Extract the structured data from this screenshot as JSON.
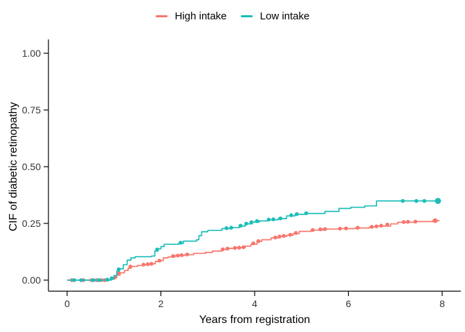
{
  "figure": {
    "background": "#ffffff"
  },
  "legend": {
    "position": "top-center",
    "items": [
      {
        "label": "High intake",
        "color": "#F8766D"
      },
      {
        "label": "Low intake",
        "color": "#1DBDB8"
      }
    ]
  },
  "axes": {
    "x": {
      "title": "Years from registration",
      "tick_labels": [
        "0",
        "2",
        "4",
        "6",
        "8"
      ],
      "tick_values": [
        0,
        2,
        4,
        6,
        8
      ],
      "line_color": "#000000",
      "tick_label_color": "#333333",
      "title_color": "#000000"
    },
    "y": {
      "title": "CIF of diabetic retinopathy",
      "tick_labels": [
        "0.00",
        "0.25",
        "0.50",
        "0.75",
        "1.00"
      ],
      "tick_values": [
        0,
        0.25,
        0.5,
        0.75,
        1.0
      ],
      "line_color": "#000000",
      "tick_label_color": "#333333",
      "title_color": "#000000"
    }
  },
  "chart_data": {
    "type": "line",
    "subtype": "step-cumulative-incidence",
    "title": "",
    "xlabel": "Years from registration",
    "ylabel": "CIF of diabetic retinopathy",
    "xlim": [
      -0.42,
      8.45
    ],
    "ylim": [
      -0.05,
      1.06
    ],
    "xticks": [
      0,
      2,
      4,
      6,
      8
    ],
    "yticks": [
      0,
      0.25,
      0.5,
      0.75,
      1.0
    ],
    "grid": false,
    "legend_position": "top",
    "series": [
      {
        "name": "High intake",
        "color": "#F8766D",
        "steps": [
          [
            0,
            0
          ],
          [
            0.85,
            0
          ],
          [
            0.92,
            0.004
          ],
          [
            1.0,
            0.012
          ],
          [
            1.06,
            0.022
          ],
          [
            1.13,
            0.032
          ],
          [
            1.22,
            0.042
          ],
          [
            1.3,
            0.052
          ],
          [
            1.36,
            0.06
          ],
          [
            1.5,
            0.065
          ],
          [
            1.62,
            0.068
          ],
          [
            1.8,
            0.072
          ],
          [
            1.88,
            0.082
          ],
          [
            1.97,
            0.086
          ],
          [
            2.05,
            0.098
          ],
          [
            2.15,
            0.102
          ],
          [
            2.3,
            0.108
          ],
          [
            2.5,
            0.112
          ],
          [
            2.7,
            0.118
          ],
          [
            2.95,
            0.122
          ],
          [
            3.1,
            0.128
          ],
          [
            3.3,
            0.135
          ],
          [
            3.45,
            0.14
          ],
          [
            3.6,
            0.143
          ],
          [
            3.8,
            0.15
          ],
          [
            3.92,
            0.158
          ],
          [
            4.05,
            0.17
          ],
          [
            4.15,
            0.178
          ],
          [
            4.35,
            0.186
          ],
          [
            4.5,
            0.192
          ],
          [
            4.68,
            0.198
          ],
          [
            4.82,
            0.205
          ],
          [
            4.95,
            0.215
          ],
          [
            5.2,
            0.22
          ],
          [
            5.45,
            0.225
          ],
          [
            5.8,
            0.227
          ],
          [
            6.15,
            0.23
          ],
          [
            6.45,
            0.234
          ],
          [
            6.62,
            0.238
          ],
          [
            6.9,
            0.248
          ],
          [
            7.05,
            0.255
          ],
          [
            7.4,
            0.258
          ],
          [
            7.8,
            0.262
          ],
          [
            7.94,
            0.262
          ]
        ],
        "markers": [
          [
            0.1,
            0
          ],
          [
            0.35,
            0
          ],
          [
            0.52,
            0
          ],
          [
            0.63,
            0
          ],
          [
            0.73,
            0
          ],
          [
            0.8,
            0
          ],
          [
            1.02,
            0.012
          ],
          [
            1.1,
            0.03
          ],
          [
            1.35,
            0.06
          ],
          [
            1.63,
            0.068
          ],
          [
            1.72,
            0.07
          ],
          [
            1.8,
            0.072
          ],
          [
            1.97,
            0.086
          ],
          [
            2.26,
            0.106
          ],
          [
            2.36,
            0.108
          ],
          [
            2.44,
            0.11
          ],
          [
            2.56,
            0.113
          ],
          [
            3.32,
            0.136
          ],
          [
            3.42,
            0.139
          ],
          [
            3.58,
            0.142
          ],
          [
            3.67,
            0.143
          ],
          [
            3.76,
            0.145
          ],
          [
            3.97,
            0.162
          ],
          [
            4.08,
            0.172
          ],
          [
            4.44,
            0.188
          ],
          [
            4.53,
            0.192
          ],
          [
            4.62,
            0.195
          ],
          [
            4.76,
            0.2
          ],
          [
            4.88,
            0.208
          ],
          [
            5.24,
            0.221
          ],
          [
            5.4,
            0.224
          ],
          [
            5.5,
            0.225
          ],
          [
            5.82,
            0.227
          ],
          [
            5.95,
            0.228
          ],
          [
            6.2,
            0.231
          ],
          [
            6.5,
            0.235
          ],
          [
            6.6,
            0.237
          ],
          [
            6.7,
            0.24
          ],
          [
            6.83,
            0.245
          ],
          [
            7.18,
            0.256
          ],
          [
            7.27,
            0.257
          ],
          [
            7.43,
            0.258
          ]
        ],
        "final_marker": [
          7.85,
          0.262
        ],
        "final_value": 0.26
      },
      {
        "name": "Low intake",
        "color": "#1DBDB8",
        "steps": [
          [
            0,
            0
          ],
          [
            0.88,
            0
          ],
          [
            0.94,
            0.006
          ],
          [
            1.0,
            0.02
          ],
          [
            1.06,
            0.04
          ],
          [
            1.12,
            0.05
          ],
          [
            1.2,
            0.068
          ],
          [
            1.28,
            0.088
          ],
          [
            1.36,
            0.098
          ],
          [
            1.45,
            0.103
          ],
          [
            1.8,
            0.106
          ],
          [
            1.87,
            0.128
          ],
          [
            1.94,
            0.138
          ],
          [
            2.0,
            0.148
          ],
          [
            2.07,
            0.158
          ],
          [
            2.38,
            0.162
          ],
          [
            2.48,
            0.172
          ],
          [
            2.76,
            0.178
          ],
          [
            2.81,
            0.196
          ],
          [
            2.87,
            0.213
          ],
          [
            3.0,
            0.219
          ],
          [
            3.3,
            0.227
          ],
          [
            3.5,
            0.231
          ],
          [
            3.67,
            0.238
          ],
          [
            3.8,
            0.248
          ],
          [
            3.95,
            0.256
          ],
          [
            4.1,
            0.261
          ],
          [
            4.28,
            0.266
          ],
          [
            4.5,
            0.271
          ],
          [
            4.68,
            0.283
          ],
          [
            4.86,
            0.29
          ],
          [
            5.08,
            0.294
          ],
          [
            5.5,
            0.303
          ],
          [
            5.8,
            0.316
          ],
          [
            6.05,
            0.321
          ],
          [
            6.35,
            0.327
          ],
          [
            6.6,
            0.349
          ],
          [
            7.97,
            0.349
          ]
        ],
        "markers": [
          [
            0.15,
            0
          ],
          [
            0.3,
            0
          ],
          [
            0.56,
            0
          ],
          [
            0.68,
            0
          ],
          [
            0.86,
            0.002
          ],
          [
            0.95,
            0.008
          ],
          [
            1.1,
            0.048
          ],
          [
            1.92,
            0.135
          ],
          [
            2.42,
            0.165
          ],
          [
            3.4,
            0.229
          ],
          [
            3.5,
            0.231
          ],
          [
            3.7,
            0.24
          ],
          [
            3.82,
            0.249
          ],
          [
            3.93,
            0.255
          ],
          [
            4.05,
            0.26
          ],
          [
            4.3,
            0.267
          ],
          [
            4.4,
            0.268
          ],
          [
            4.55,
            0.272
          ],
          [
            4.78,
            0.286
          ],
          [
            4.9,
            0.291
          ],
          [
            5.1,
            0.295
          ],
          [
            7.16,
            0.349
          ],
          [
            7.45,
            0.349
          ],
          [
            7.62,
            0.349
          ]
        ],
        "final_marker": [
          7.91,
          0.349
        ],
        "final_value": 0.35
      }
    ]
  }
}
